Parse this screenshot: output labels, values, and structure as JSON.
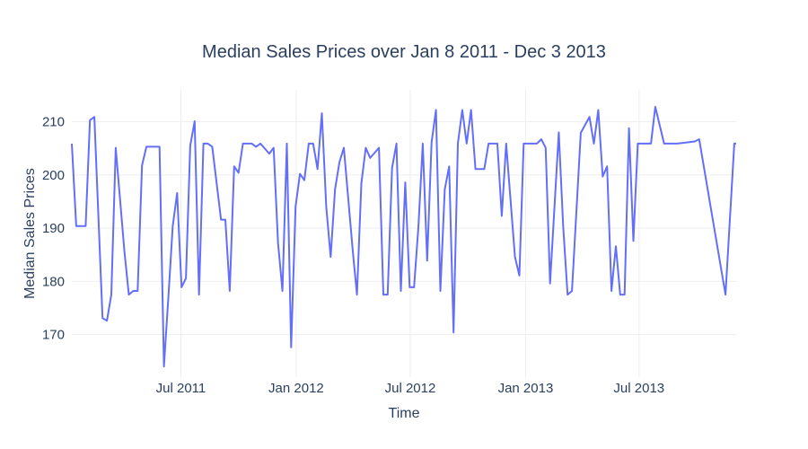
{
  "chart_data": {
    "type": "line",
    "title": "Median Sales Prices over Jan 8 2011 - Dec 3 2013",
    "xlabel": "Time",
    "ylabel": "Median Sales Prices",
    "xlim": [
      "2011-01-08",
      "2013-12-03"
    ],
    "ylim": [
      162,
      216
    ],
    "grid": true,
    "legend": "none",
    "line_color": "#636efa",
    "x_ticks": [
      {
        "date": "2011-07-01",
        "label": "Jul 2011"
      },
      {
        "date": "2012-01-01",
        "label": "Jan 2012"
      },
      {
        "date": "2012-07-01",
        "label": "Jul 2012"
      },
      {
        "date": "2013-01-01",
        "label": "Jan 2013"
      },
      {
        "date": "2013-07-01",
        "label": "Jul 2013"
      }
    ],
    "y_ticks": [
      170,
      180,
      190,
      200,
      210
    ],
    "series": [
      {
        "x": [
          "2011-01-08",
          "2011-01-15",
          "2011-01-30",
          "2011-02-06",
          "2011-02-13",
          "2011-02-26",
          "2011-03-05",
          "2011-03-12",
          "2011-03-19",
          "2011-04-02",
          "2011-04-09",
          "2011-04-16",
          "2011-04-23",
          "2011-04-30",
          "2011-05-07",
          "2011-05-21",
          "2011-05-28",
          "2011-06-04",
          "2011-06-11",
          "2011-06-18",
          "2011-06-25",
          "2011-07-02",
          "2011-07-09",
          "2011-07-16",
          "2011-07-23",
          "2011-07-30",
          "2011-08-06",
          "2011-08-13",
          "2011-08-20",
          "2011-09-03",
          "2011-09-10",
          "2011-09-17",
          "2011-09-24",
          "2011-10-01",
          "2011-10-08",
          "2011-10-15",
          "2011-10-22",
          "2011-10-29",
          "2011-11-05",
          "2011-11-19",
          "2011-11-26",
          "2011-12-03",
          "2011-12-10",
          "2011-12-17",
          "2011-12-24",
          "2011-12-31",
          "2012-01-07",
          "2012-01-14",
          "2012-01-21",
          "2012-01-28",
          "2012-02-04",
          "2012-02-11",
          "2012-02-18",
          "2012-02-25",
          "2012-03-03",
          "2012-03-10",
          "2012-03-17",
          "2012-03-31",
          "2012-04-07",
          "2012-04-14",
          "2012-04-21",
          "2012-04-28",
          "2012-05-12",
          "2012-05-19",
          "2012-05-26",
          "2012-06-02",
          "2012-06-09",
          "2012-06-16",
          "2012-06-23",
          "2012-06-30",
          "2012-07-07",
          "2012-07-14",
          "2012-07-21",
          "2012-07-28",
          "2012-08-04",
          "2012-08-11",
          "2012-08-18",
          "2012-08-25",
          "2012-09-01",
          "2012-09-08",
          "2012-09-15",
          "2012-09-22",
          "2012-09-29",
          "2012-10-06",
          "2012-10-13",
          "2012-10-27",
          "2012-11-03",
          "2012-11-17",
          "2012-11-24",
          "2012-12-01",
          "2012-12-15",
          "2012-12-22",
          "2012-12-29",
          "2013-01-05",
          "2013-01-12",
          "2013-01-19",
          "2013-01-26",
          "2013-02-02",
          "2013-02-09",
          "2013-02-23",
          "2013-03-02",
          "2013-03-09",
          "2013-03-16",
          "2013-03-30",
          "2013-04-13",
          "2013-04-20",
          "2013-04-27",
          "2013-05-04",
          "2013-05-11",
          "2013-05-18",
          "2013-05-25",
          "2013-06-01",
          "2013-06-08",
          "2013-06-15",
          "2013-06-22",
          "2013-06-29",
          "2013-07-06",
          "2013-07-13",
          "2013-07-20",
          "2013-07-27",
          "2013-08-10",
          "2013-08-31",
          "2013-09-28",
          "2013-10-05",
          "2013-11-16",
          "2013-11-30",
          "2013-12-03"
        ],
        "y": [
          205.9,
          190.4,
          190.4,
          210.3,
          210.9,
          173.1,
          172.6,
          177.5,
          205.1,
          185.6,
          177.5,
          178.2,
          178.2,
          201.8,
          205.3,
          205.3,
          205.3,
          164.0,
          176.9,
          190.4,
          196.6,
          178.9,
          180.6,
          205.5,
          210.1,
          177.5,
          205.9,
          205.9,
          205.3,
          191.6,
          191.6,
          178.2,
          201.6,
          200.4,
          205.9,
          205.9,
          205.9,
          205.3,
          205.9,
          204.0,
          205.1,
          187.2,
          178.2,
          205.9,
          167.6,
          194.0,
          200.2,
          199.0,
          205.9,
          205.9,
          201.1,
          211.6,
          194.0,
          184.6,
          197.3,
          202.4,
          205.1,
          186.0,
          177.5,
          198.4,
          205.1,
          203.2,
          205.1,
          177.5,
          177.5,
          201.3,
          205.9,
          178.2,
          198.6,
          178.9,
          178.9,
          190.4,
          205.9,
          183.9,
          206.1,
          212.2,
          178.2,
          197.3,
          201.6,
          170.4,
          205.9,
          212.2,
          205.9,
          212.2,
          201.1,
          201.1,
          205.9,
          205.9,
          192.3,
          205.9,
          184.6,
          181.1,
          205.9,
          205.9,
          205.9,
          205.9,
          206.7,
          205.1,
          179.6,
          208.0,
          190.4,
          177.5,
          178.2,
          207.9,
          210.9,
          205.9,
          212.2,
          199.7,
          201.6,
          178.2,
          186.6,
          177.5,
          177.5,
          208.8,
          187.6,
          205.9,
          205.9,
          205.9,
          205.9,
          212.8,
          205.9,
          205.9,
          206.3,
          206.7,
          177.5,
          205.9,
          205.9
        ]
      }
    ]
  }
}
